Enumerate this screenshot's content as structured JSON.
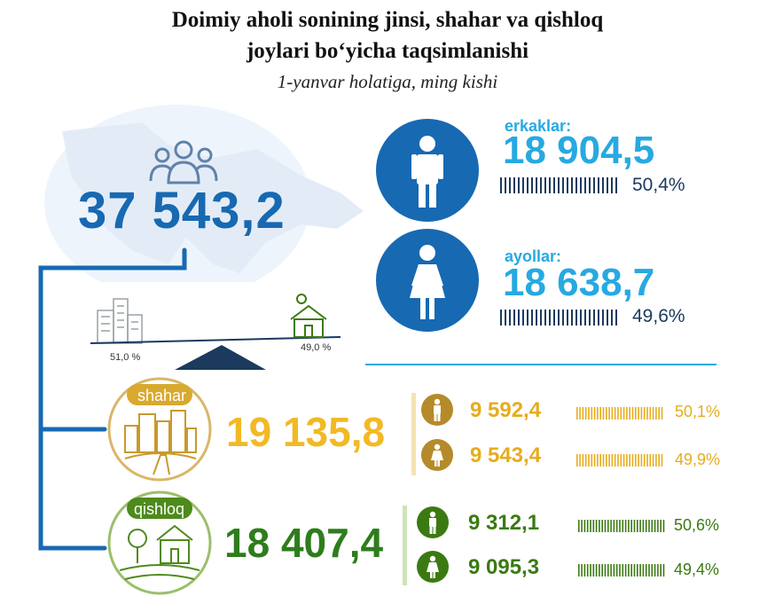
{
  "header": {
    "title_line1": "Doimiy aholi sonining jinsi, shahar va qishloq",
    "title_line2": "joylari bo‘yicha taqsimlanishi",
    "subtitle": "1-yanvar holatiga, ming kishi"
  },
  "total": {
    "value": "37 543,2",
    "icon": "people-group-icon"
  },
  "men": {
    "label": "erkaklar:",
    "value": "18 904,5",
    "percent": "50,4%",
    "share": 50.4,
    "icon": "man-icon"
  },
  "women": {
    "label": "ayollar:",
    "value": "18 638,7",
    "percent": "49,6%",
    "share": 49.6,
    "icon": "woman-icon"
  },
  "balance": {
    "urban_percent": "51,0 %",
    "rural_percent": "49,0 %"
  },
  "urban": {
    "label": "shahar",
    "value": "19 135,8",
    "men_value": "9 592,4",
    "men_percent": "50,1%",
    "women_value": "9 543,4",
    "women_percent": "49,9%"
  },
  "rural": {
    "label": "qishloq",
    "value": "18 407,4",
    "men_value": "9 312,1",
    "men_percent": "50,6%",
    "women_value": "9 095,3",
    "women_percent": "49,4%"
  },
  "colors": {
    "dark_blue": "#1769b2",
    "light_blue": "#27a9e1",
    "navy": "#1b3a5e",
    "gold": "#e7ac1c",
    "urban_circle": "#b58a2a",
    "green": "#3b7a12"
  }
}
